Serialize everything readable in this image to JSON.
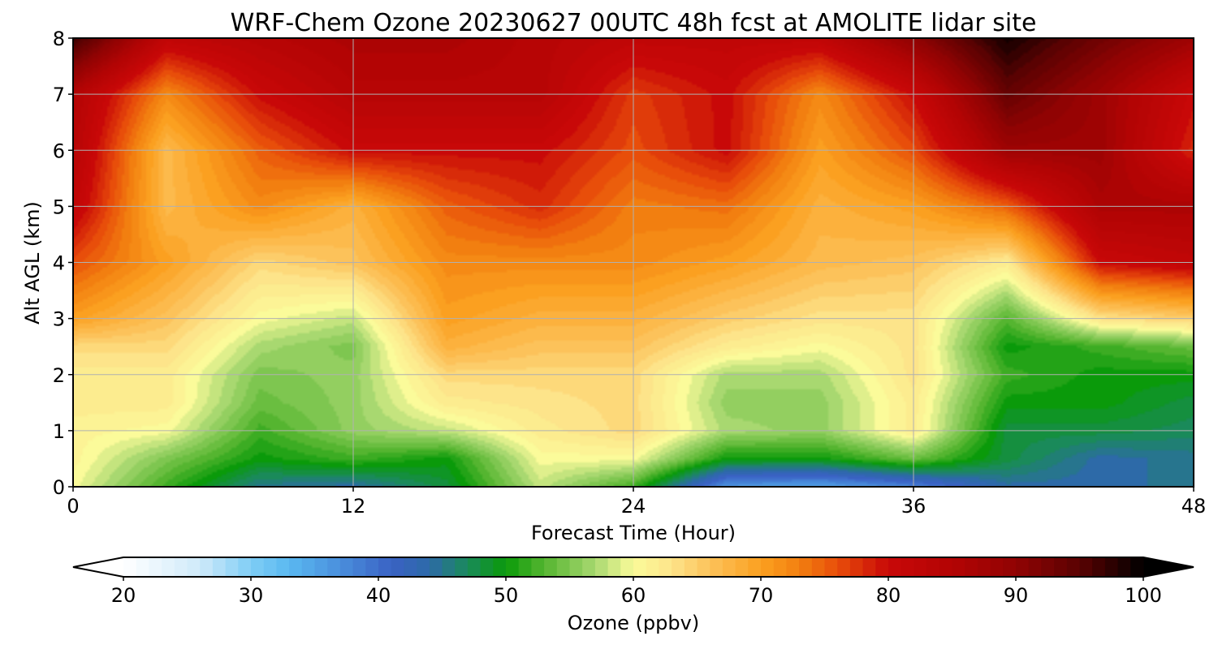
{
  "chart_data": {
    "type": "heatmap",
    "title": "WRF-Chem Ozone  20230627 00UTC 48h fcst at AMOLITE lidar site",
    "xlabel": "Forecast Time (Hour)",
    "ylabel": "Alt AGL (km)",
    "xlim": [
      0,
      48
    ],
    "ylim": [
      0,
      8
    ],
    "xticks": [
      "0",
      "12",
      "24",
      "36",
      "48"
    ],
    "yticks": [
      "0",
      "1",
      "2",
      "3",
      "4",
      "5",
      "6",
      "7",
      "8"
    ],
    "grid": true,
    "x": [
      0,
      4,
      8,
      12,
      16,
      20,
      24,
      28,
      32,
      36,
      40,
      44,
      48
    ],
    "y": [
      0,
      0.5,
      1,
      1.5,
      2,
      2.5,
      3,
      4,
      5,
      6,
      7,
      8
    ],
    "z": [
      [
        60,
        52,
        45,
        44,
        48,
        58,
        52,
        36,
        35,
        38,
        44,
        44,
        45
      ],
      [
        61,
        55,
        50,
        52,
        50,
        60,
        60,
        50,
        50,
        54,
        48,
        44,
        45
      ],
      [
        61,
        60,
        52,
        56,
        58,
        62,
        64,
        57,
        56,
        62,
        48,
        48,
        47
      ],
      [
        62,
        62,
        54,
        56,
        62,
        63,
        64,
        56,
        56,
        62,
        50,
        50,
        48
      ],
      [
        62,
        62,
        55,
        56,
        64,
        64,
        64,
        57,
        57,
        63,
        52,
        50,
        50
      ],
      [
        64,
        64,
        57,
        55,
        68,
        66,
        66,
        62,
        60,
        63,
        50,
        52,
        54
      ],
      [
        70,
        66,
        60,
        58,
        70,
        68,
        68,
        65,
        63,
        63,
        53,
        63,
        65
      ],
      [
        76,
        70,
        64,
        66,
        72,
        72,
        72,
        70,
        67,
        66,
        62,
        80,
        82
      ],
      [
        82,
        67,
        72,
        68,
        75,
        78,
        73,
        74,
        68,
        70,
        75,
        86,
        86
      ],
      [
        84,
        67,
        75,
        80,
        80,
        80,
        76,
        80,
        70,
        76,
        88,
        88,
        78
      ],
      [
        85,
        72,
        80,
        84,
        84,
        84,
        77,
        80,
        72,
        80,
        94,
        88,
        80
      ],
      [
        97,
        82,
        84,
        86,
        86,
        84,
        82,
        82,
        82,
        90,
        99,
        93,
        88
      ]
    ],
    "colorbar": {
      "label": "Ozone  (ppbv)",
      "min": 20,
      "max": 100,
      "ticks": [
        "20",
        "30",
        "40",
        "50",
        "60",
        "70",
        "80",
        "90",
        "100"
      ],
      "extend": "both",
      "stops": [
        [
          20,
          "#ffffff"
        ],
        [
          26,
          "#cfeaf9"
        ],
        [
          30,
          "#7fcdf5"
        ],
        [
          33,
          "#5ab8f0"
        ],
        [
          37,
          "#4a8fdc"
        ],
        [
          41,
          "#3a62c4"
        ],
        [
          44,
          "#2d6aa8"
        ],
        [
          47,
          "#1a8a5a"
        ],
        [
          50,
          "#0a9a0a"
        ],
        [
          53,
          "#55b530"
        ],
        [
          57,
          "#a8d870"
        ],
        [
          60,
          "#fbfb9a"
        ],
        [
          63,
          "#fde48a"
        ],
        [
          66,
          "#fcc25a"
        ],
        [
          70,
          "#fba020"
        ],
        [
          73,
          "#f27f10"
        ],
        [
          76,
          "#e84e0a"
        ],
        [
          80,
          "#c80808"
        ],
        [
          85,
          "#b30404"
        ],
        [
          90,
          "#900303"
        ],
        [
          95,
          "#5a0202"
        ],
        [
          100,
          "#000000"
        ]
      ]
    }
  }
}
